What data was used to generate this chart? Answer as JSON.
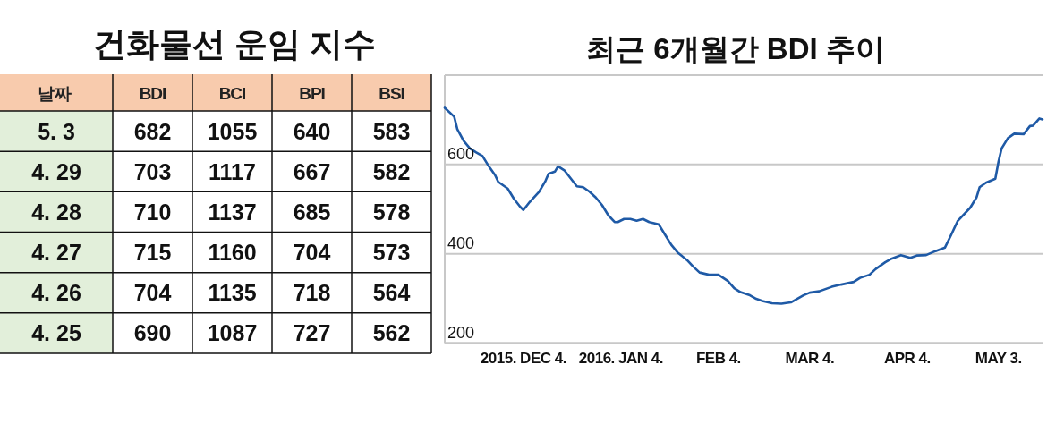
{
  "chart_data": [
    {
      "type": "other",
      "title": "건화물선 운임 지수",
      "ylabel": "날짜",
      "categories": [
        "5. 3",
        "4. 29",
        "4. 28",
        "4. 27",
        "4. 26",
        "4. 25"
      ],
      "series": [
        {
          "name": "BDI",
          "values": [
            682,
            703,
            710,
            715,
            704,
            690
          ]
        },
        {
          "name": "BCI",
          "values": [
            1055,
            1117,
            1137,
            1160,
            1135,
            1087
          ]
        },
        {
          "name": "BPI",
          "values": [
            640,
            667,
            685,
            704,
            718,
            727
          ]
        },
        {
          "name": "BSI",
          "values": [
            583,
            582,
            578,
            573,
            564,
            562
          ]
        }
      ],
      "data_labels": true
    },
    {
      "type": "line",
      "title": "최근 6개월간 BDI 추이",
      "x": [
        "2015-11-09",
        "2015-11-12",
        "2015-11-13",
        "2015-11-15",
        "2015-11-17",
        "2015-11-19",
        "2015-11-21",
        "2015-11-23",
        "2015-11-25",
        "2015-11-26",
        "2015-11-29",
        "2015-12-01",
        "2015-12-03",
        "2015-12-04",
        "2015-12-06",
        "2015-12-09",
        "2015-12-11",
        "2015-12-12",
        "2015-12-14",
        "2015-12-15",
        "2015-12-17",
        "2015-12-19",
        "2015-12-21",
        "2015-12-23",
        "2015-12-25",
        "2015-12-27",
        "2015-12-29",
        "2015-12-31",
        "2016-01-02",
        "2016-01-03",
        "2016-01-05",
        "2016-01-07",
        "2016-01-09",
        "2016-01-11",
        "2016-01-13",
        "2016-01-16",
        "2016-01-18",
        "2016-01-20",
        "2016-01-22",
        "2016-01-25",
        "2016-01-27",
        "2016-01-29",
        "2016-02-01",
        "2016-02-04",
        "2016-02-07",
        "2016-02-09",
        "2016-02-11",
        "2016-02-14",
        "2016-02-16",
        "2016-02-18",
        "2016-02-21",
        "2016-02-24",
        "2016-02-27",
        "2016-02-29",
        "2016-03-02",
        "2016-03-04",
        "2016-03-07",
        "2016-03-09",
        "2016-03-11",
        "2016-03-14",
        "2016-03-18",
        "2016-03-20",
        "2016-03-23",
        "2016-03-25",
        "2016-03-28",
        "2016-03-30",
        "2016-04-02",
        "2016-04-05",
        "2016-04-07",
        "2016-04-10",
        "2016-04-13",
        "2016-04-16",
        "2016-04-18",
        "2016-04-20",
        "2016-04-24",
        "2016-04-26",
        "2016-04-27",
        "2016-04-29",
        "2016-05-02",
        "2016-05-03",
        "2016-05-04",
        "2016-05-06",
        "2016-05-08",
        "2016-05-11",
        "2016-05-13",
        "2016-05-14",
        "2016-05-16",
        "2016-05-17"
      ],
      "series": [
        {
          "color": "#1f5aa6",
          "values": [
            727,
            707,
            679,
            653,
            636,
            627,
            619,
            596,
            576,
            561,
            546,
            523,
            505,
            498,
            516,
            539,
            563,
            579,
            584,
            596,
            587,
            569,
            551,
            549,
            539,
            526,
            509,
            486,
            471,
            471,
            478,
            478,
            474,
            478,
            471,
            466,
            443,
            420,
            403,
            386,
            371,
            358,
            353,
            353,
            339,
            323,
            314,
            307,
            299,
            294,
            289,
            288,
            291,
            299,
            307,
            313,
            316,
            321,
            326,
            331,
            337,
            346,
            353,
            366,
            381,
            389,
            397,
            391,
            396,
            397,
            406,
            414,
            443,
            473,
            503,
            526,
            549,
            559,
            568,
            606,
            636,
            659,
            669,
            668,
            686,
            687,
            703,
            701
          ]
        }
      ],
      "xlim": [
        "2015-11-09",
        "2016-05-17"
      ],
      "xticks": [
        {
          "value": "2015-12-04",
          "label": "2015. DEC 4."
        },
        {
          "value": "2016-01-04",
          "label": "2016. JAN 4."
        },
        {
          "value": "2016-02-04",
          "label": "FEB 4."
        },
        {
          "value": "2016-03-04",
          "label": "MAR 4."
        },
        {
          "value": "2016-04-04",
          "label": "APR 4."
        },
        {
          "value": "2016-05-03",
          "label": "MAY 3."
        }
      ],
      "ylim": [
        200,
        800
      ],
      "yticks": [
        200,
        400,
        600,
        {
          "value": 800,
          "label": null
        }
      ],
      "grid": "y"
    }
  ]
}
